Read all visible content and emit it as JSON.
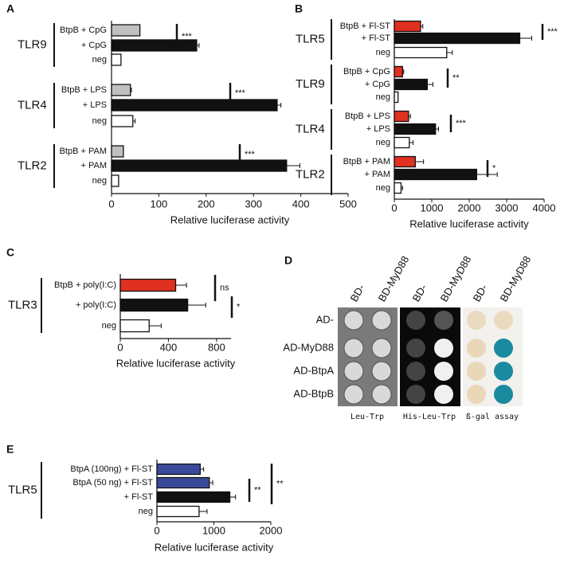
{
  "chart_data": [
    {
      "type": "hbar",
      "panel": "A",
      "xlabel": "Relative luciferase activity",
      "xlim": [
        0,
        500
      ],
      "xticks": [
        0,
        100,
        200,
        300,
        400,
        500
      ],
      "groups": [
        {
          "name": "TLR9",
          "categories": [
            "BtpB + CpG",
            "+ CpG",
            "neg"
          ],
          "values": [
            60,
            180,
            20
          ],
          "errors": [
            0,
            5,
            0
          ],
          "colors": [
            "#c0c0c0",
            "#111111",
            "#ffffff"
          ],
          "significance": [
            "***"
          ]
        },
        {
          "name": "TLR4",
          "categories": [
            "BtpB + LPS",
            "+ LPS",
            "neg"
          ],
          "values": [
            40,
            350,
            45
          ],
          "errors": [
            2,
            8,
            5
          ],
          "colors": [
            "#c0c0c0",
            "#111111",
            "#ffffff"
          ],
          "significance": [
            "***"
          ]
        },
        {
          "name": "TLR2",
          "categories": [
            "BtpB + PAM",
            "+ PAM",
            "neg"
          ],
          "values": [
            25,
            370,
            15
          ],
          "errors": [
            0,
            28,
            0
          ],
          "colors": [
            "#c0c0c0",
            "#111111",
            "#ffffff"
          ],
          "significance": [
            "***"
          ]
        }
      ]
    },
    {
      "type": "hbar",
      "panel": "B",
      "xlabel": "Relative luciferase activity",
      "xlim": [
        0,
        4000
      ],
      "xticks": [
        0,
        1000,
        2000,
        3000,
        4000
      ],
      "groups": [
        {
          "name": "TLR5",
          "categories": [
            "BtpB + Fl-ST",
            "+ Fl-ST",
            "neg"
          ],
          "values": [
            700,
            3350,
            1400
          ],
          "errors": [
            60,
            320,
            150
          ],
          "colors": [
            "#e03020",
            "#111111",
            "#ffffff"
          ],
          "significance": [
            "***"
          ]
        },
        {
          "name": "TLR9",
          "categories": [
            "BtpB + CpG",
            "+ CpG",
            "neg"
          ],
          "values": [
            220,
            880,
            100
          ],
          "errors": [
            30,
            150,
            0
          ],
          "colors": [
            "#e03020",
            "#111111",
            "#ffffff"
          ],
          "significance": [
            "**"
          ]
        },
        {
          "name": "TLR4",
          "categories": [
            "BtpB + LPS",
            "+ LPS",
            "neg"
          ],
          "values": [
            380,
            1100,
            400
          ],
          "errors": [
            50,
            80,
            100
          ],
          "colors": [
            "#e03020",
            "#111111",
            "#ffffff"
          ],
          "significance": [
            "***"
          ]
        },
        {
          "name": "TLR2",
          "categories": [
            "BtpB + PAM",
            "+ PAM",
            "neg"
          ],
          "values": [
            560,
            2200,
            180
          ],
          "errors": [
            220,
            550,
            40
          ],
          "colors": [
            "#e03020",
            "#111111",
            "#ffffff"
          ],
          "significance": [
            "*"
          ]
        }
      ]
    },
    {
      "type": "hbar",
      "panel": "C",
      "xlabel": "Relative luciferase activity",
      "xlim": [
        0,
        920
      ],
      "xticks": [
        0,
        400,
        800
      ],
      "groups": [
        {
          "name": "TLR3",
          "categories": [
            "BtpB + poly(I:C)",
            "+ poly(I:C)",
            "neg"
          ],
          "values": [
            460,
            560,
            240
          ],
          "errors": [
            90,
            150,
            100
          ],
          "colors": [
            "#e03020",
            "#111111",
            "#ffffff"
          ],
          "significance": [
            "ns",
            "*"
          ]
        }
      ]
    },
    {
      "type": "hbar",
      "panel": "E",
      "xlabel": "Relative luciferase activity",
      "xlim": [
        0,
        2000
      ],
      "xticks": [
        0,
        1000,
        2000
      ],
      "groups": [
        {
          "name": "TLR5",
          "categories": [
            "BtpA (100ng) + Fl-ST",
            "BtpA (50 ng) + Fl-ST",
            "+ Fl-ST",
            "neg"
          ],
          "values": [
            760,
            920,
            1280,
            740
          ],
          "errors": [
            60,
            60,
            100,
            140
          ],
          "colors": [
            "#3a4a9a",
            "#3a4a9a",
            "#111111",
            "#ffffff"
          ],
          "significance": [
            "**",
            "**"
          ]
        }
      ]
    }
  ],
  "panel_d": {
    "letter": "D",
    "columns": [
      "BD-",
      "BD-MyD88"
    ],
    "rows": [
      "AD-",
      "AD-MyD88",
      "AD-BtpA",
      "AD-BtpB"
    ],
    "assays": [
      "Leu-Trp",
      "His-Leu-Trp",
      "ß-gal assay"
    ]
  }
}
